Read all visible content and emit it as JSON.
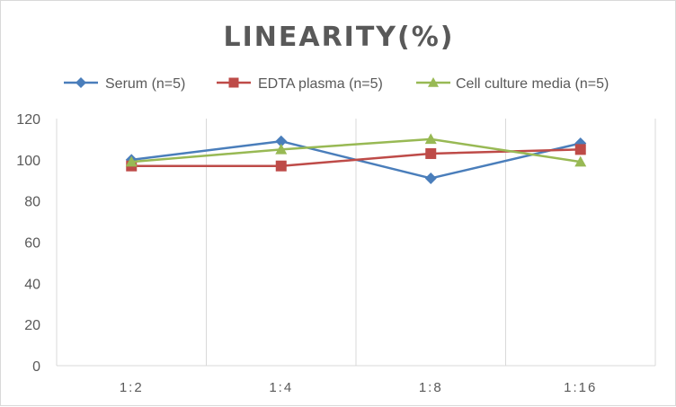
{
  "chart_data": {
    "type": "line",
    "title": "LINEARITY(%)",
    "categories": [
      "1:2",
      "1:4",
      "1:8",
      "1:16"
    ],
    "ylim": [
      0,
      120
    ],
    "yticks": [
      0,
      20,
      40,
      60,
      80,
      100,
      120
    ],
    "grid": "vertical",
    "legend_position": "top",
    "series": [
      {
        "name": "Serum (n=5)",
        "values": [
          100,
          109,
          91,
          108
        ],
        "color": "#4a7ebb",
        "marker": "diamond"
      },
      {
        "name": "EDTA plasma (n=5)",
        "values": [
          97,
          97,
          103,
          105
        ],
        "color": "#be4b48",
        "marker": "square"
      },
      {
        "name": "Cell culture media (n=5)",
        "values": [
          99,
          105,
          110,
          99
        ],
        "color": "#98b954",
        "marker": "triangle"
      }
    ]
  }
}
